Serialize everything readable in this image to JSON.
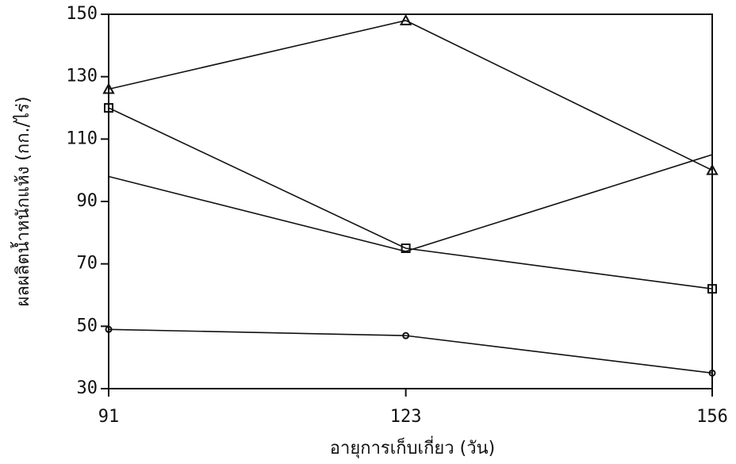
{
  "chart_data": {
    "type": "line",
    "x_label": "อายุการเก็บเกี่ยว (วัน)",
    "y_label": "ผลผลิตน้ำหนักแห้ง (กก./ไร่)",
    "x": [
      91,
      123,
      156
    ],
    "xlim": [
      91,
      156
    ],
    "xticks": [
      91,
      123,
      156
    ],
    "ylim": [
      30,
      150
    ],
    "yticks": [
      30,
      50,
      70,
      90,
      110,
      130,
      150
    ],
    "series": [
      {
        "color": "#111111",
        "marker": "triangle",
        "values": [
          126,
          148,
          100
        ]
      },
      {
        "color": "#111111",
        "marker": "square",
        "values": [
          120,
          75,
          62
        ]
      },
      {
        "color": "#111111",
        "marker": "none",
        "values": [
          98,
          74,
          105
        ]
      },
      {
        "color": "#111111",
        "marker": "circle",
        "values": [
          49,
          47,
          35
        ]
      }
    ]
  }
}
